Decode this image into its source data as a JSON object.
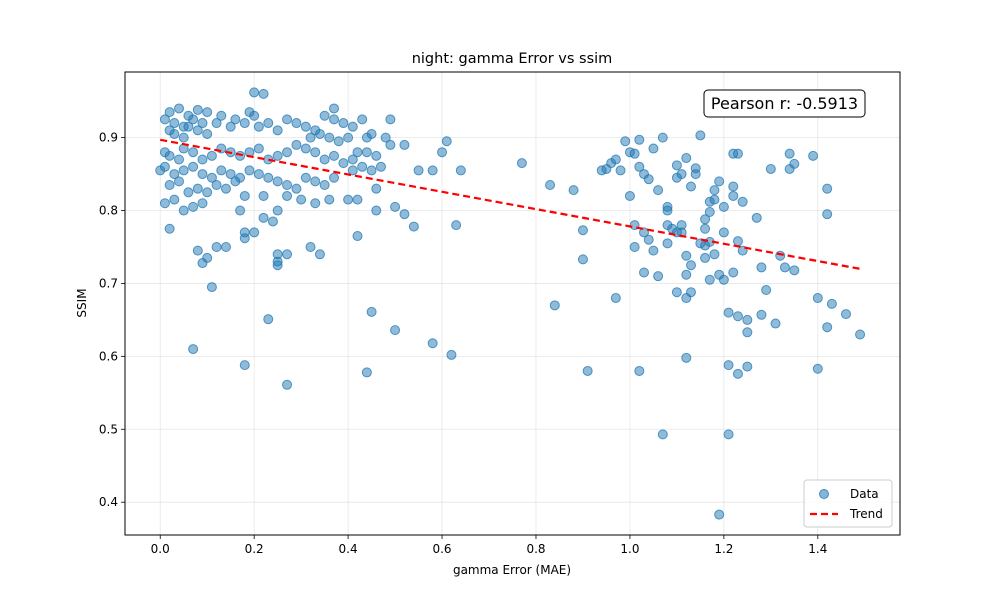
{
  "chart_data": {
    "type": "scatter",
    "title": "night: gamma Error vs ssim",
    "xlabel": "gamma Error (MAE)",
    "ylabel": "SSIM",
    "xlim": [
      -0.075,
      1.575
    ],
    "ylim": [
      0.355,
      0.99
    ],
    "xticks": [
      0.0,
      0.2,
      0.4,
      0.6,
      0.8,
      1.0,
      1.2,
      1.4
    ],
    "yticks": [
      0.4,
      0.5,
      0.6,
      0.7,
      0.8,
      0.9
    ],
    "xtick_labels": [
      "0.0",
      "0.2",
      "0.4",
      "0.6",
      "0.8",
      "1.0",
      "1.2",
      "1.4"
    ],
    "ytick_labels": [
      "0.4",
      "0.5",
      "0.6",
      "0.7",
      "0.8",
      "0.9"
    ],
    "grid": true,
    "legend_position": "bottom-right",
    "legend": [
      "Data",
      "Trend"
    ],
    "annotation": "Pearson r: -0.5913",
    "colors": {
      "points": "#1f77b4",
      "trend": "#ff0000"
    },
    "trend": {
      "x": [
        0.0,
        1.49
      ],
      "y": [
        0.897,
        0.72
      ]
    },
    "series": [
      {
        "name": "Data",
        "points": [
          [
            0.01,
            0.925
          ],
          [
            0.02,
            0.935
          ],
          [
            0.03,
            0.92
          ],
          [
            0.04,
            0.94
          ],
          [
            0.05,
            0.915
          ],
          [
            0.06,
            0.93
          ],
          [
            0.07,
            0.925
          ],
          [
            0.08,
            0.938
          ],
          [
            0.09,
            0.92
          ],
          [
            0.1,
            0.935
          ],
          [
            0.02,
            0.91
          ],
          [
            0.03,
            0.905
          ],
          [
            0.05,
            0.9
          ],
          [
            0.06,
            0.915
          ],
          [
            0.08,
            0.91
          ],
          [
            0.1,
            0.905
          ],
          [
            0.12,
            0.92
          ],
          [
            0.13,
            0.93
          ],
          [
            0.15,
            0.915
          ],
          [
            0.16,
            0.925
          ],
          [
            0.18,
            0.92
          ],
          [
            0.19,
            0.935
          ],
          [
            0.2,
            0.93
          ],
          [
            0.21,
            0.915
          ],
          [
            0.23,
            0.92
          ],
          [
            0.25,
            0.91
          ],
          [
            0.27,
            0.925
          ],
          [
            0.29,
            0.92
          ],
          [
            0.31,
            0.915
          ],
          [
            0.33,
            0.91
          ],
          [
            0.35,
            0.93
          ],
          [
            0.37,
            0.925
          ],
          [
            0.39,
            0.92
          ],
          [
            0.41,
            0.915
          ],
          [
            0.43,
            0.925
          ],
          [
            0.45,
            0.905
          ],
          [
            0.01,
            0.88
          ],
          [
            0.02,
            0.875
          ],
          [
            0.04,
            0.87
          ],
          [
            0.05,
            0.885
          ],
          [
            0.07,
            0.88
          ],
          [
            0.09,
            0.87
          ],
          [
            0.11,
            0.875
          ],
          [
            0.13,
            0.885
          ],
          [
            0.15,
            0.88
          ],
          [
            0.17,
            0.875
          ],
          [
            0.19,
            0.88
          ],
          [
            0.21,
            0.885
          ],
          [
            0.23,
            0.87
          ],
          [
            0.25,
            0.875
          ],
          [
            0.27,
            0.88
          ],
          [
            0.29,
            0.89
          ],
          [
            0.31,
            0.885
          ],
          [
            0.33,
            0.88
          ],
          [
            0.35,
            0.87
          ],
          [
            0.37,
            0.875
          ],
          [
            0.39,
            0.865
          ],
          [
            0.41,
            0.87
          ],
          [
            0.43,
            0.86
          ],
          [
            0.45,
            0.855
          ],
          [
            0.0,
            0.855
          ],
          [
            0.01,
            0.86
          ],
          [
            0.03,
            0.85
          ],
          [
            0.05,
            0.855
          ],
          [
            0.07,
            0.86
          ],
          [
            0.09,
            0.85
          ],
          [
            0.11,
            0.845
          ],
          [
            0.13,
            0.855
          ],
          [
            0.15,
            0.85
          ],
          [
            0.17,
            0.845
          ],
          [
            0.19,
            0.855
          ],
          [
            0.21,
            0.85
          ],
          [
            0.23,
            0.845
          ],
          [
            0.25,
            0.84
          ],
          [
            0.27,
            0.835
          ],
          [
            0.29,
            0.83
          ],
          [
            0.31,
            0.845
          ],
          [
            0.33,
            0.84
          ],
          [
            0.35,
            0.835
          ],
          [
            0.37,
            0.845
          ],
          [
            0.02,
            0.835
          ],
          [
            0.04,
            0.84
          ],
          [
            0.06,
            0.825
          ],
          [
            0.08,
            0.83
          ],
          [
            0.1,
            0.825
          ],
          [
            0.12,
            0.835
          ],
          [
            0.14,
            0.83
          ],
          [
            0.16,
            0.84
          ],
          [
            0.18,
            0.82
          ],
          [
            0.22,
            0.82
          ],
          [
            0.01,
            0.81
          ],
          [
            0.03,
            0.815
          ],
          [
            0.05,
            0.8
          ],
          [
            0.07,
            0.805
          ],
          [
            0.09,
            0.81
          ],
          [
            0.17,
            0.8
          ],
          [
            0.18,
            0.77
          ],
          [
            0.2,
            0.77
          ],
          [
            0.22,
            0.79
          ],
          [
            0.25,
            0.8
          ],
          [
            0.27,
            0.82
          ],
          [
            0.3,
            0.815
          ],
          [
            0.33,
            0.81
          ],
          [
            0.36,
            0.815
          ],
          [
            0.4,
            0.815
          ],
          [
            0.42,
            0.815
          ],
          [
            0.46,
            0.8
          ],
          [
            0.5,
            0.805
          ],
          [
            0.52,
            0.795
          ],
          [
            0.54,
            0.778
          ],
          [
            0.02,
            0.775
          ],
          [
            0.08,
            0.745
          ],
          [
            0.1,
            0.735
          ],
          [
            0.12,
            0.75
          ],
          [
            0.14,
            0.75
          ],
          [
            0.18,
            0.762
          ],
          [
            0.24,
            0.785
          ],
          [
            0.25,
            0.74
          ],
          [
            0.25,
            0.73
          ],
          [
            0.25,
            0.725
          ],
          [
            0.27,
            0.74
          ],
          [
            0.32,
            0.75
          ],
          [
            0.34,
            0.74
          ],
          [
            0.42,
            0.765
          ],
          [
            0.09,
            0.728
          ],
          [
            0.11,
            0.695
          ],
          [
            0.07,
            0.61
          ],
          [
            0.18,
            0.588
          ],
          [
            0.23,
            0.651
          ],
          [
            0.27,
            0.561
          ],
          [
            0.44,
            0.578
          ],
          [
            0.45,
            0.661
          ],
          [
            0.5,
            0.636
          ],
          [
            0.58,
            0.618
          ],
          [
            0.62,
            0.602
          ],
          [
            0.63,
            0.78
          ],
          [
            0.2,
            0.962
          ],
          [
            0.22,
            0.96
          ],
          [
            0.37,
            0.94
          ],
          [
            0.49,
            0.925
          ],
          [
            0.44,
            0.88
          ],
          [
            0.46,
            0.875
          ],
          [
            0.48,
            0.9
          ],
          [
            0.49,
            0.89
          ],
          [
            0.52,
            0.89
          ],
          [
            0.55,
            0.855
          ],
          [
            0.58,
            0.855
          ],
          [
            0.61,
            0.895
          ],
          [
            0.6,
            0.88
          ],
          [
            0.64,
            0.855
          ],
          [
            0.46,
            0.83
          ],
          [
            0.47,
            0.86
          ],
          [
            0.41,
            0.855
          ],
          [
            0.38,
            0.895
          ],
          [
            0.4,
            0.9
          ],
          [
            0.42,
            0.88
          ],
          [
            0.44,
            0.9
          ],
          [
            0.36,
            0.9
          ],
          [
            0.34,
            0.905
          ],
          [
            0.32,
            0.9
          ],
          [
            0.77,
            0.865
          ],
          [
            0.83,
            0.835
          ],
          [
            0.84,
            0.67
          ],
          [
            0.88,
            0.828
          ],
          [
            0.9,
            0.773
          ],
          [
            0.9,
            0.733
          ],
          [
            0.91,
            0.58
          ],
          [
            0.94,
            0.855
          ],
          [
            0.95,
            0.857
          ],
          [
            0.96,
            0.865
          ],
          [
            0.97,
            0.87
          ],
          [
            0.97,
            0.68
          ],
          [
            0.98,
            0.855
          ],
          [
            0.99,
            0.895
          ],
          [
            1.0,
            0.88
          ],
          [
            1.0,
            0.82
          ],
          [
            1.01,
            0.878
          ],
          [
            1.01,
            0.78
          ],
          [
            1.01,
            0.75
          ],
          [
            1.02,
            0.897
          ],
          [
            1.02,
            0.86
          ],
          [
            1.02,
            0.58
          ],
          [
            1.03,
            0.85
          ],
          [
            1.03,
            0.77
          ],
          [
            1.03,
            0.715
          ],
          [
            1.04,
            0.843
          ],
          [
            1.04,
            0.76
          ],
          [
            1.05,
            0.885
          ],
          [
            1.05,
            0.745
          ],
          [
            1.06,
            0.828
          ],
          [
            1.06,
            0.71
          ],
          [
            1.07,
            0.9
          ],
          [
            1.07,
            0.493
          ],
          [
            1.08,
            0.805
          ],
          [
            1.08,
            0.8
          ],
          [
            1.08,
            0.78
          ],
          [
            1.08,
            0.755
          ],
          [
            1.09,
            0.775
          ],
          [
            1.1,
            0.862
          ],
          [
            1.1,
            0.845
          ],
          [
            1.1,
            0.77
          ],
          [
            1.1,
            0.688
          ],
          [
            1.11,
            0.85
          ],
          [
            1.11,
            0.78
          ],
          [
            1.11,
            0.77
          ],
          [
            1.12,
            0.872
          ],
          [
            1.12,
            0.738
          ],
          [
            1.12,
            0.712
          ],
          [
            1.12,
            0.68
          ],
          [
            1.12,
            0.598
          ],
          [
            1.13,
            0.833
          ],
          [
            1.13,
            0.725
          ],
          [
            1.13,
            0.688
          ],
          [
            1.14,
            0.858
          ],
          [
            1.14,
            0.85
          ],
          [
            1.15,
            0.903
          ],
          [
            1.15,
            0.755
          ],
          [
            1.16,
            0.788
          ],
          [
            1.16,
            0.775
          ],
          [
            1.16,
            0.752
          ],
          [
            1.16,
            0.735
          ],
          [
            1.17,
            0.812
          ],
          [
            1.17,
            0.798
          ],
          [
            1.17,
            0.757
          ],
          [
            1.17,
            0.705
          ],
          [
            1.18,
            0.828
          ],
          [
            1.18,
            0.815
          ],
          [
            1.18,
            0.74
          ],
          [
            1.19,
            0.84
          ],
          [
            1.19,
            0.712
          ],
          [
            1.19,
            0.383
          ],
          [
            1.2,
            0.805
          ],
          [
            1.2,
            0.77
          ],
          [
            1.2,
            0.705
          ],
          [
            1.21,
            0.66
          ],
          [
            1.21,
            0.588
          ],
          [
            1.21,
            0.493
          ],
          [
            1.22,
            0.878
          ],
          [
            1.22,
            0.833
          ],
          [
            1.22,
            0.82
          ],
          [
            1.22,
            0.715
          ],
          [
            1.23,
            0.878
          ],
          [
            1.23,
            0.758
          ],
          [
            1.23,
            0.655
          ],
          [
            1.23,
            0.576
          ],
          [
            1.24,
            0.812
          ],
          [
            1.24,
            0.745
          ],
          [
            1.25,
            0.65
          ],
          [
            1.25,
            0.633
          ],
          [
            1.25,
            0.586
          ],
          [
            1.27,
            0.79
          ],
          [
            1.28,
            0.722
          ],
          [
            1.28,
            0.657
          ],
          [
            1.29,
            0.691
          ],
          [
            1.3,
            0.857
          ],
          [
            1.31,
            0.645
          ],
          [
            1.32,
            0.738
          ],
          [
            1.33,
            0.722
          ],
          [
            1.34,
            0.878
          ],
          [
            1.34,
            0.857
          ],
          [
            1.35,
            0.864
          ],
          [
            1.35,
            0.718
          ],
          [
            1.39,
            0.875
          ],
          [
            1.4,
            0.68
          ],
          [
            1.4,
            0.583
          ],
          [
            1.42,
            0.83
          ],
          [
            1.42,
            0.795
          ],
          [
            1.42,
            0.64
          ],
          [
            1.43,
            0.672
          ],
          [
            1.46,
            0.658
          ],
          [
            1.49,
            0.63
          ]
        ]
      }
    ]
  }
}
